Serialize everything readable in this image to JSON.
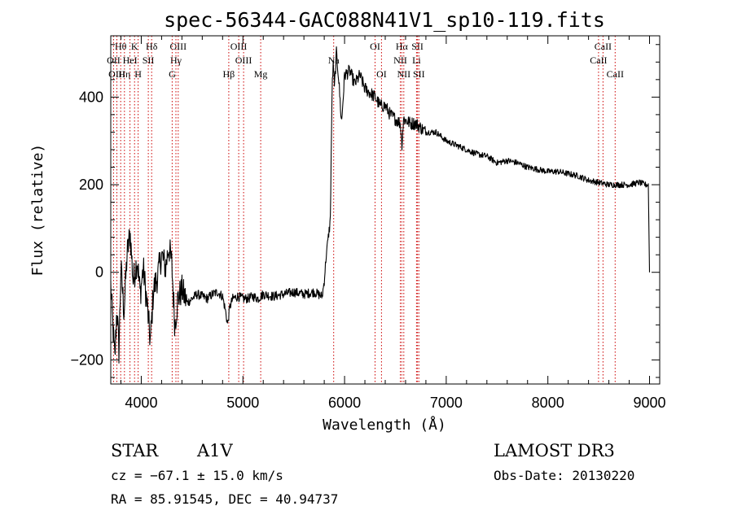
{
  "chart_data": {
    "type": "line",
    "title": "spec-56344-GAC088N41V1_sp10-119.fits",
    "xlabel": "Wavelength (Å)",
    "ylabel": "Flux (relative)",
    "xlim": [
      3700,
      9100
    ],
    "ylim": [
      -255,
      540
    ],
    "xticks": [
      4000,
      5000,
      6000,
      7000,
      8000,
      9000
    ],
    "xtick_labels": [
      "4000",
      "5000",
      "6000",
      "7000",
      "8000",
      "9000"
    ],
    "yticks": [
      -200,
      0,
      200,
      400
    ],
    "ytick_labels": [
      "−200",
      "0",
      "200",
      "400"
    ],
    "series": [
      {
        "name": "spectrum",
        "anchors": [
          [
            3700,
            -30
          ],
          [
            3720,
            -120
          ],
          [
            3740,
            -200
          ],
          [
            3760,
            -80
          ],
          [
            3780,
            -180
          ],
          [
            3800,
            10
          ],
          [
            3830,
            -90
          ],
          [
            3860,
            40
          ],
          [
            3890,
            90
          ],
          [
            3920,
            -20
          ],
          [
            3960,
            30
          ],
          [
            3990,
            -50
          ],
          [
            4020,
            10
          ],
          [
            4060,
            -80
          ],
          [
            4090,
            -160
          ],
          [
            4120,
            -40
          ],
          [
            4160,
            -10
          ],
          [
            4200,
            40
          ],
          [
            4240,
            10
          ],
          [
            4270,
            60
          ],
          [
            4300,
            20
          ],
          [
            4330,
            -120
          ],
          [
            4360,
            -60
          ],
          [
            4400,
            -40
          ],
          [
            4450,
            -70
          ],
          [
            4500,
            -60
          ],
          [
            4550,
            -50
          ],
          [
            4600,
            -55
          ],
          [
            4650,
            -60
          ],
          [
            4700,
            -50
          ],
          [
            4750,
            -45
          ],
          [
            4800,
            -55
          ],
          [
            4830,
            -90
          ],
          [
            4850,
            -120
          ],
          [
            4870,
            -80
          ],
          [
            4900,
            -60
          ],
          [
            4950,
            -55
          ],
          [
            5000,
            -60
          ],
          [
            5050,
            -60
          ],
          [
            5100,
            -55
          ],
          [
            5150,
            -60
          ],
          [
            5200,
            -50
          ],
          [
            5300,
            -55
          ],
          [
            5400,
            -50
          ],
          [
            5500,
            -45
          ],
          [
            5600,
            -50
          ],
          [
            5700,
            -45
          ],
          [
            5780,
            -55
          ],
          [
            5800,
            -20
          ],
          [
            5820,
            40
          ],
          [
            5840,
            80
          ],
          [
            5860,
            120
          ],
          [
            5870,
            300
          ],
          [
            5880,
            440
          ],
          [
            5890,
            480
          ],
          [
            5900,
            420
          ],
          [
            5920,
            500
          ],
          [
            5940,
            450
          ],
          [
            5970,
            340
          ],
          [
            6000,
            450
          ],
          [
            6050,
            460
          ],
          [
            6100,
            430
          ],
          [
            6150,
            450
          ],
          [
            6200,
            420
          ],
          [
            6250,
            410
          ],
          [
            6300,
            400
          ],
          [
            6350,
            380
          ],
          [
            6400,
            380
          ],
          [
            6450,
            360
          ],
          [
            6500,
            350
          ],
          [
            6550,
            340
          ],
          [
            6563,
            290
          ],
          [
            6580,
            350
          ],
          [
            6650,
            340
          ],
          [
            6700,
            340
          ],
          [
            6750,
            330
          ],
          [
            6800,
            320
          ],
          [
            6900,
            320
          ],
          [
            7000,
            300
          ],
          [
            7100,
            290
          ],
          [
            7200,
            280
          ],
          [
            7300,
            270
          ],
          [
            7400,
            265
          ],
          [
            7500,
            250
          ],
          [
            7600,
            255
          ],
          [
            7700,
            250
          ],
          [
            7800,
            240
          ],
          [
            7900,
            235
          ],
          [
            8000,
            230
          ],
          [
            8100,
            230
          ],
          [
            8200,
            225
          ],
          [
            8300,
            220
          ],
          [
            8400,
            210
          ],
          [
            8500,
            205
          ],
          [
            8600,
            200
          ],
          [
            8700,
            200
          ],
          [
            8800,
            200
          ],
          [
            8900,
            205
          ],
          [
            8960,
            200
          ],
          [
            8990,
            200
          ],
          [
            9000,
            0
          ]
        ]
      }
    ],
    "line_markers": [
      {
        "label": "Hθ",
        "wl": 3798,
        "row": 0
      },
      {
        "label": "OII",
        "wl": 3727,
        "row": 1
      },
      {
        "label": "OIII",
        "wl": 3760,
        "row": 2
      },
      {
        "label": "Hη",
        "wl": 3835,
        "row": 2
      },
      {
        "label": "HeI",
        "wl": 3889,
        "row": 1
      },
      {
        "label": "K",
        "wl": 3934,
        "row": 0
      },
      {
        "label": "SII",
        "wl": 4069,
        "row": 1
      },
      {
        "label": "H",
        "wl": 3969,
        "row": 2
      },
      {
        "label": "Hδ",
        "wl": 4102,
        "row": 0
      },
      {
        "label": "OIII",
        "wl": 4363,
        "row": 0
      },
      {
        "label": "Hγ",
        "wl": 4341,
        "row": 1
      },
      {
        "label": "G",
        "wl": 4304,
        "row": 2
      },
      {
        "label": "OIII",
        "wl": 4959,
        "row": 0
      },
      {
        "label": "OIII",
        "wl": 5007,
        "row": 1
      },
      {
        "label": "Hβ",
        "wl": 4861,
        "row": 2
      },
      {
        "label": "Mg",
        "wl": 5175,
        "row": 2
      },
      {
        "label": "Na",
        "wl": 5893,
        "row": 1
      },
      {
        "label": "OI",
        "wl": 6300,
        "row": 0
      },
      {
        "label": "OI",
        "wl": 6363,
        "row": 2
      },
      {
        "label": "Hα",
        "wl": 6563,
        "row": 0
      },
      {
        "label": "NII",
        "wl": 6548,
        "row": 1
      },
      {
        "label": "NII",
        "wl": 6583,
        "row": 2
      },
      {
        "label": "SII",
        "wl": 6717,
        "row": 0
      },
      {
        "label": "Li",
        "wl": 6708,
        "row": 1
      },
      {
        "label": "SII",
        "wl": 6731,
        "row": 2
      },
      {
        "label": "CaII",
        "wl": 8542,
        "row": 0
      },
      {
        "label": "CaII",
        "wl": 8498,
        "row": 1
      },
      {
        "label": "CaII",
        "wl": 8662,
        "row": 2
      }
    ]
  },
  "info": {
    "class": "STAR",
    "subclass": "A1V",
    "survey": "LAMOST DR3",
    "cz": "cz = −67.1 ± 15.0 km/s",
    "obs_date": "Obs-Date: 20130220",
    "radec": "RA =  85.91545, DEC =  40.94737"
  },
  "colors": {
    "marker": "#cc0000",
    "line": "#000000"
  }
}
